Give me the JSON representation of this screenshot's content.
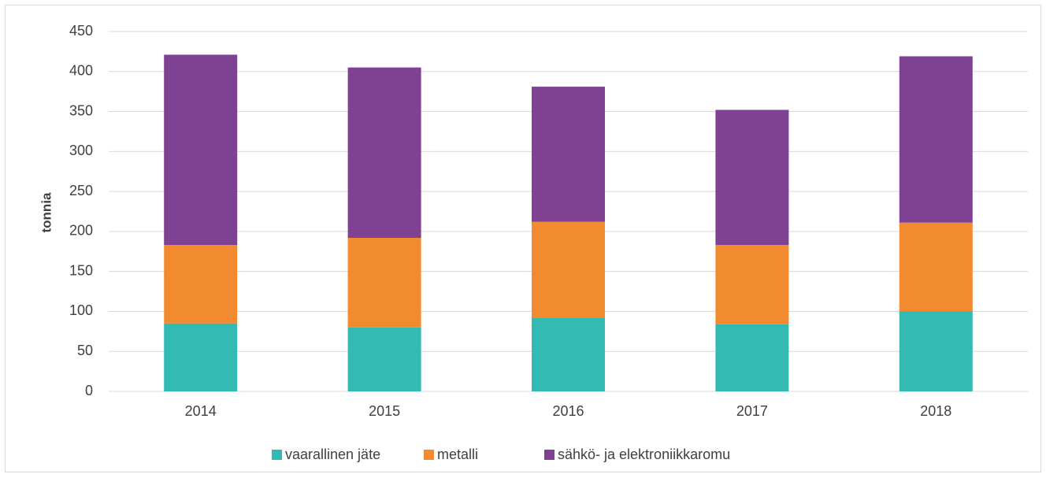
{
  "chart_data": {
    "type": "stacked_bar",
    "y_label": "tonnia",
    "categories": [
      "2014",
      "2015",
      "2016",
      "2017",
      "2018"
    ],
    "series": [
      {
        "name": "vaarallinen jäte",
        "color": "#33bbb3",
        "values": [
          85,
          80,
          92,
          84,
          100
        ]
      },
      {
        "name": "metalli",
        "color": "#f28a30",
        "values": [
          98,
          112,
          120,
          99,
          111
        ]
      },
      {
        "name": "sähkö- ja elektroniikkaromu",
        "color": "#7f4293",
        "values": [
          238,
          213,
          169,
          169,
          208
        ]
      }
    ],
    "ylim": [
      0,
      450
    ],
    "yticks": [
      0,
      50,
      100,
      150,
      200,
      250,
      300,
      350,
      400,
      450
    ],
    "grid": true,
    "legend": "bottom"
  }
}
